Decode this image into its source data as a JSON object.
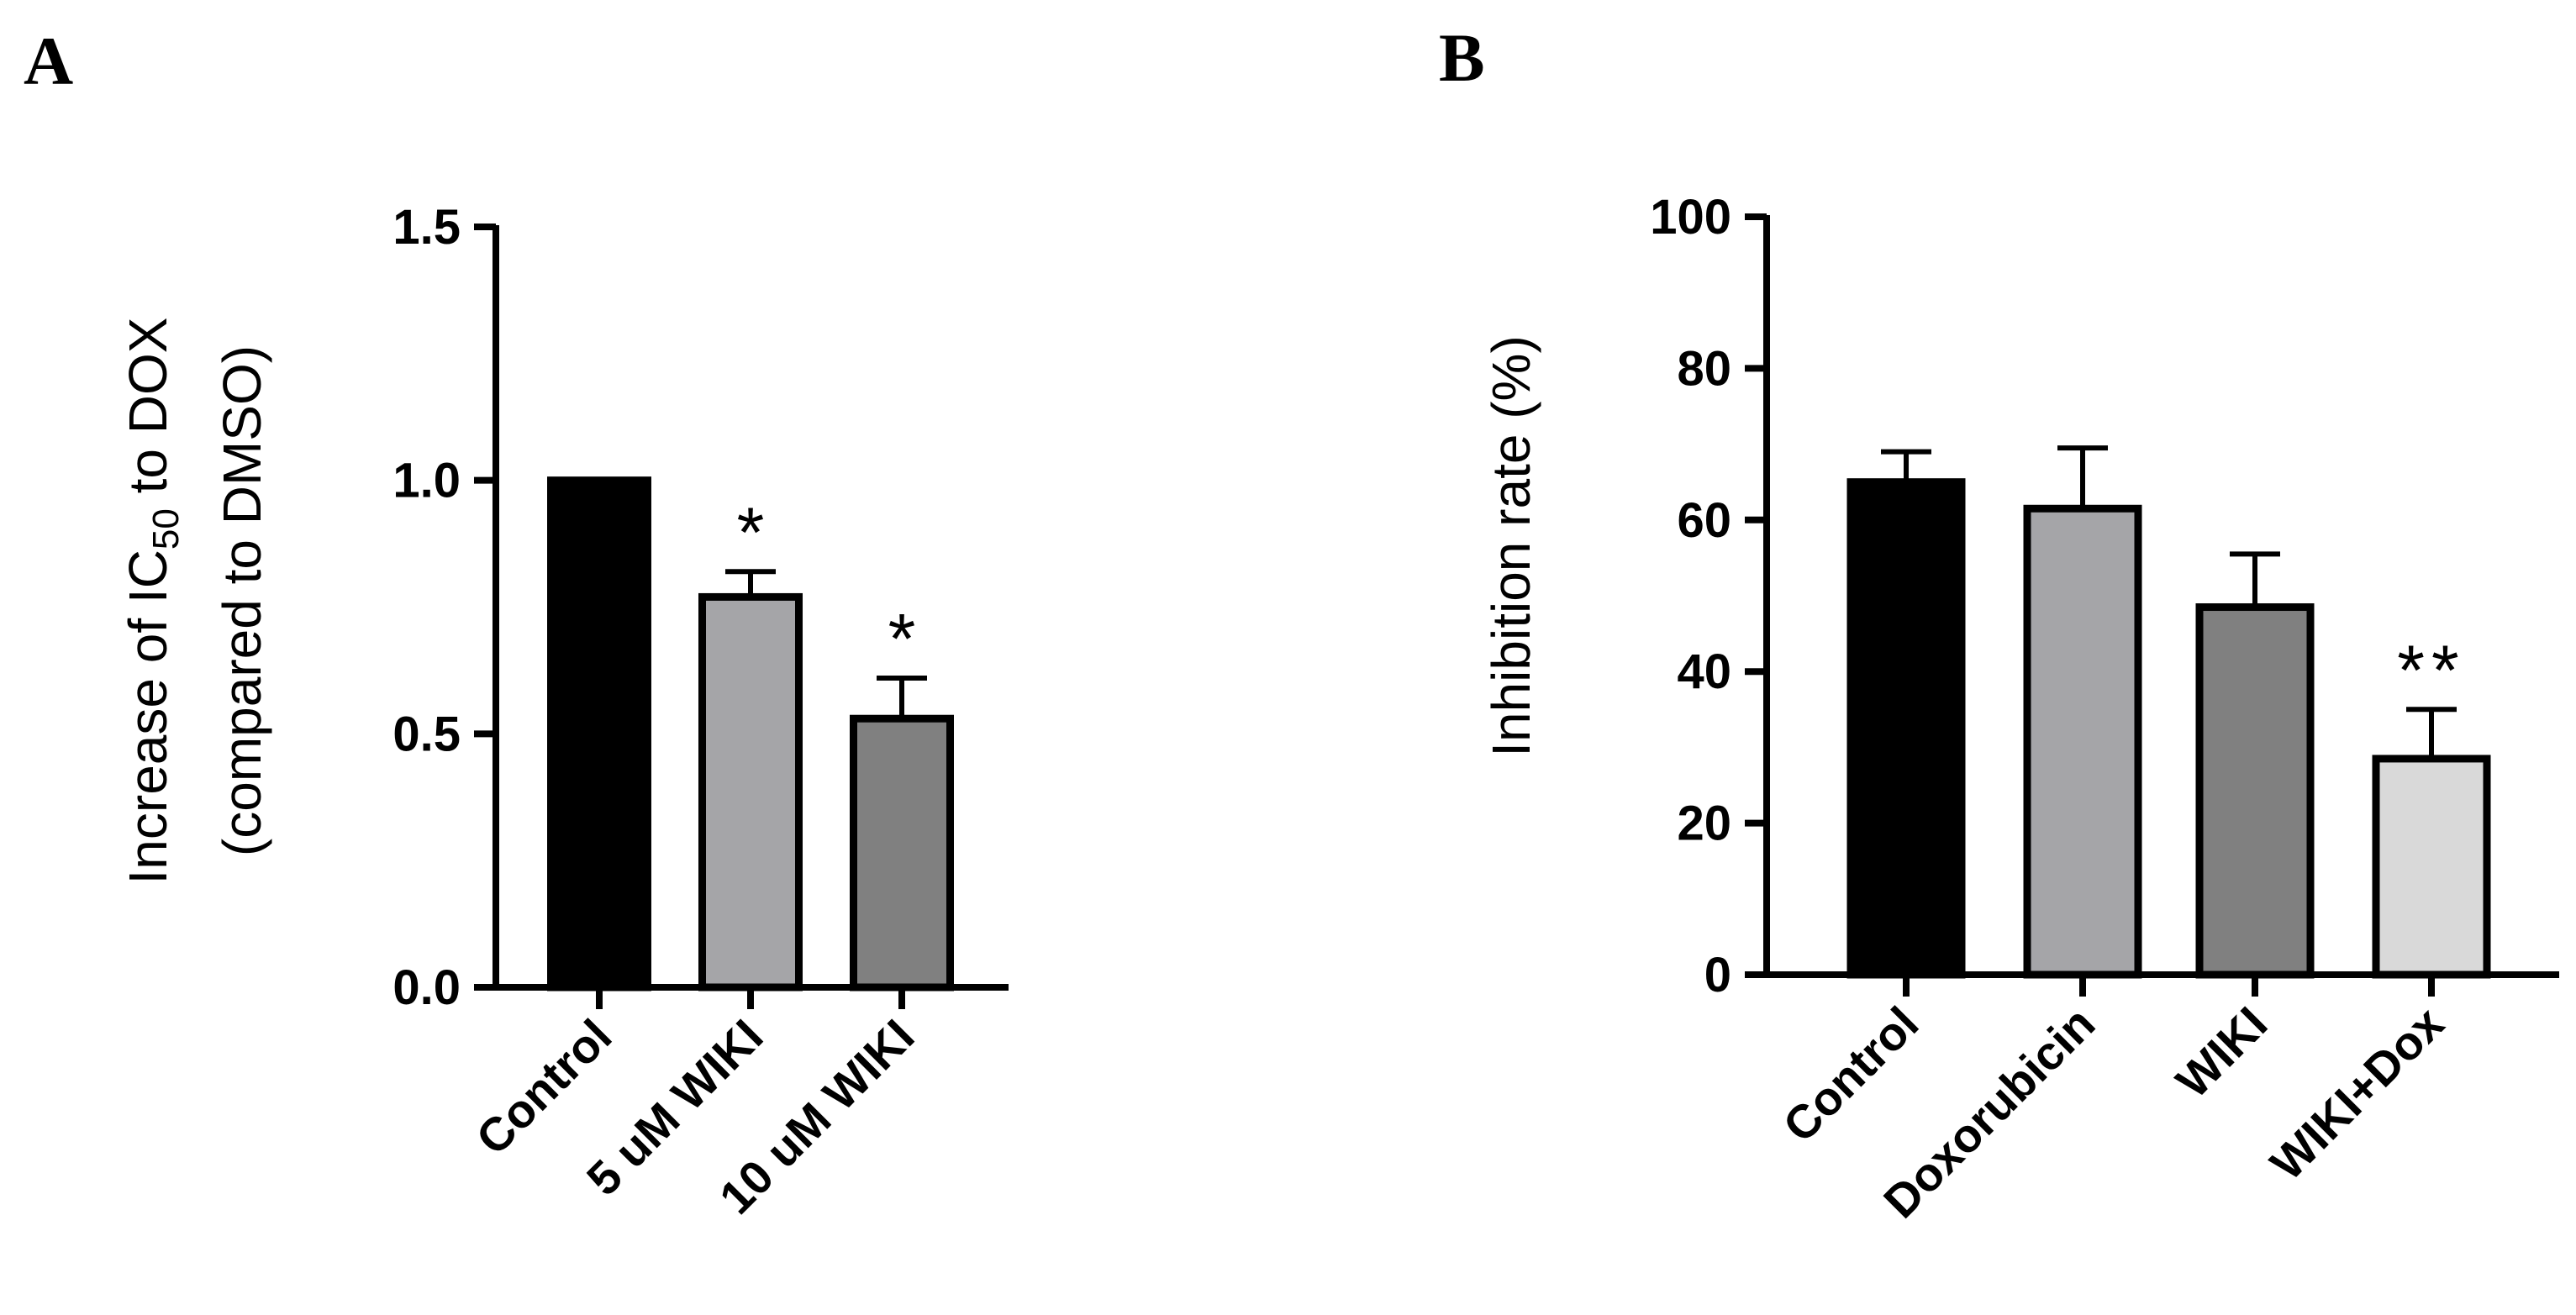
{
  "panels": {
    "a": {
      "letter": "A"
    },
    "b": {
      "letter": "B"
    }
  },
  "chart_data": [
    {
      "type": "bar",
      "panel": "A",
      "title": "",
      "xlabel": "",
      "ylabel": "Increase of IC50 to DOX (compared to DMSO)",
      "ylabel_parts": {
        "main": "Increase of IC",
        "subscript": "50",
        "tail": " to DOX",
        "line2": "(compared to DMSO)"
      },
      "ylim": [
        0,
        1.5
      ],
      "yticks": [
        0,
        0.5,
        1.0,
        1.5
      ],
      "ytick_labels": [
        "0.0",
        "0.5",
        "1.0",
        "1.5"
      ],
      "categories": [
        "Control",
        "5 uM WIKI",
        "10 uM WIKI"
      ],
      "values": [
        1.0,
        0.77,
        0.53
      ],
      "errors": [
        0,
        0.05,
        0.08
      ],
      "colors": [
        "#000000",
        "#a5a5a8",
        "#808080"
      ],
      "significance": [
        "",
        "*",
        "*"
      ]
    },
    {
      "type": "bar",
      "panel": "B",
      "title": "",
      "xlabel": "",
      "ylabel": "Inhibition rate (%)",
      "ylim": [
        0,
        100
      ],
      "yticks": [
        0,
        20,
        40,
        60,
        80,
        100
      ],
      "ytick_labels": [
        "0",
        "20",
        "40",
        "60",
        "80",
        "100"
      ],
      "categories": [
        "Control",
        "Doxorubicin",
        "WIKI",
        "WIKI+Dox"
      ],
      "values": [
        65,
        61.5,
        48.5,
        28.5
      ],
      "errors": [
        4,
        8,
        7,
        6.5
      ],
      "colors": [
        "#000000",
        "#a5a5a8",
        "#808080",
        "#d9d9d9"
      ],
      "significance": [
        "",
        "",
        "",
        "**"
      ]
    }
  ]
}
